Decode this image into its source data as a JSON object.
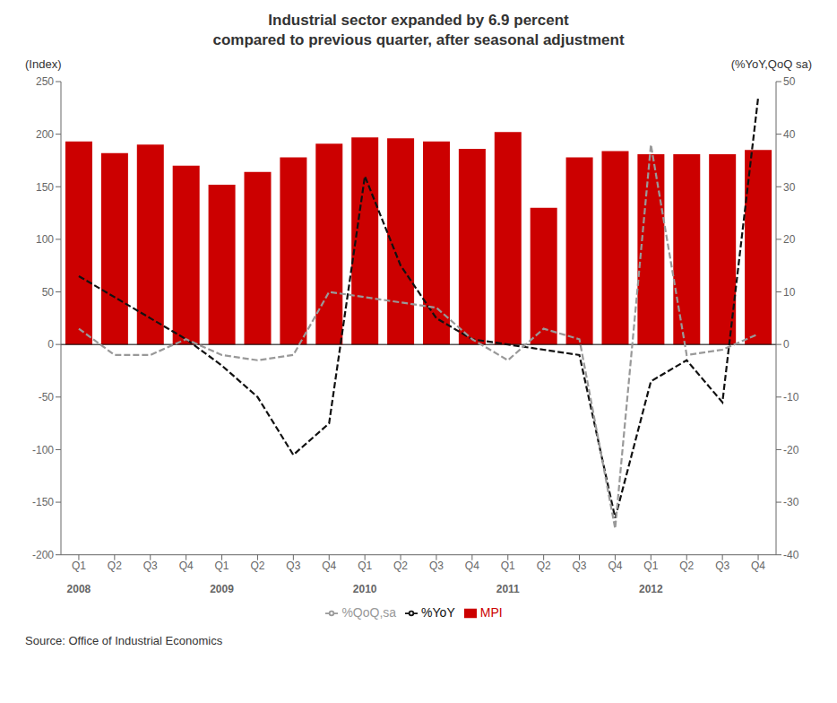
{
  "chart_data": {
    "type": "bar",
    "title": "Industrial sector expanded by 6.9 percent\ncompared to previous quarter, after seasonal adjustment",
    "source": "Source: Office of Industrial Economics",
    "y_label": "(Index)",
    "y2_label": "(%YoY,QoQ sa)",
    "categories": [
      "Q1",
      "Q2",
      "Q3",
      "Q4",
      "Q1",
      "Q2",
      "Q3",
      "Q4",
      "Q1",
      "Q2",
      "Q3",
      "Q4",
      "Q1",
      "Q2",
      "Q3",
      "Q4",
      "Q1",
      "Q2",
      "Q3",
      "Q4"
    ],
    "years": [
      "2008",
      null,
      null,
      null,
      "2009",
      null,
      null,
      null,
      "2010",
      null,
      null,
      null,
      "2011",
      null,
      null,
      null,
      "2012",
      null,
      null,
      null
    ],
    "series": [
      {
        "name": "MPI",
        "type": "bar",
        "color": "#cc0000",
        "values": [
          193,
          182,
          190,
          170,
          152,
          164,
          178,
          191,
          197,
          196,
          193,
          186,
          202,
          130,
          178,
          184,
          181,
          181,
          181,
          185
        ]
      },
      {
        "name": "%YoY",
        "type": "line",
        "axis": "y2",
        "color": "#111111",
        "line_style": "dashed",
        "values": [
          13,
          9,
          5,
          1,
          -4,
          -10,
          -21,
          -15,
          32,
          15,
          5,
          1,
          0,
          -1,
          -2,
          -33,
          -7,
          -3,
          -11,
          47
        ]
      },
      {
        "name": "%QoQ,sa",
        "type": "line",
        "axis": "y2",
        "color": "#999999",
        "line_style": "dashed",
        "values": [
          3,
          -2,
          -2,
          1,
          -2,
          -3,
          -2,
          10,
          9,
          8,
          7,
          1,
          -3,
          3,
          1,
          -35,
          38,
          -2,
          -1,
          2
        ]
      }
    ],
    "ylim": [
      -200,
      250
    ],
    "yticks": [
      -200,
      -150,
      -100,
      -50,
      0,
      50,
      100,
      150,
      200,
      250
    ],
    "y2lim": [
      -40,
      50
    ],
    "y2ticks": [
      -40,
      -30,
      -20,
      -10,
      0,
      10,
      20,
      30,
      40,
      50
    ],
    "grid": false,
    "legend": "bottom"
  }
}
